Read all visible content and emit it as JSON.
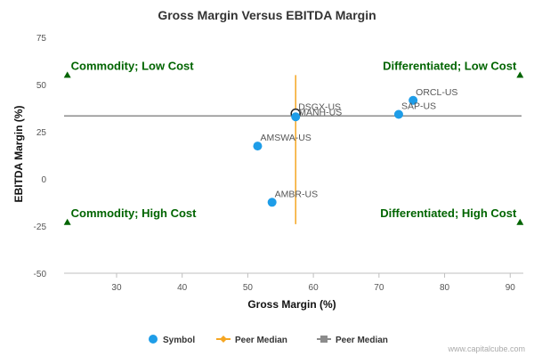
{
  "colors": {
    "symbol": "#1e9de8",
    "x_median_line": "#f5a623",
    "y_median_line": "#8c8c8c",
    "quadrant_text": "#006400",
    "quadrant_marker": "#006400",
    "axis": "#bfbfbf"
  },
  "chart_data": {
    "type": "scatter",
    "title": "Gross Margin Versus EBITDA Margin",
    "xlabel": "Gross Margin (%)",
    "ylabel": "EBITDA Margin (%)",
    "xlim": [
      22,
      92
    ],
    "ylim": [
      -50,
      75
    ],
    "x_ticks": [
      "30",
      "40",
      "50",
      "60",
      "70",
      "80",
      "90"
    ],
    "y_ticks": [
      "75",
      "50",
      "25",
      "0",
      "-25",
      "-50"
    ],
    "series": [
      {
        "name": "Symbol",
        "points": [
          {
            "label": "ORCL-US",
            "x": 75.2,
            "y": 41.6
          },
          {
            "label": "SAP-US",
            "x": 73.0,
            "y": 34.2
          },
          {
            "label": "DSGX-US",
            "x": 57.3,
            "y": 34.6
          },
          {
            "label": "MANH-US",
            "x": 57.3,
            "y": 32.9
          },
          {
            "label": "AMSWA-US",
            "x": 51.5,
            "y": 17.4
          },
          {
            "label": "AMBR-US",
            "x": 53.7,
            "y": -12.4
          }
        ]
      },
      {
        "name": "Peer Median",
        "kind": "vertical",
        "x": 57.3,
        "y_range": [
          -24,
          55
        ]
      },
      {
        "name": "Peer Median",
        "kind": "horizontal",
        "y": 33.4
      }
    ],
    "quadrants": [
      {
        "text": "Commodity; Low Cost",
        "x": 22.5,
        "y": 55
      },
      {
        "text": "Differentiated; Low Cost",
        "x": 91.5,
        "y": 55
      },
      {
        "text": "Commodity; High Cost",
        "x": 22.5,
        "y": -23
      },
      {
        "text": "Differentiated; High Cost",
        "x": 91.5,
        "y": -23
      }
    ],
    "legend": [
      "Symbol",
      "Peer Median",
      "Peer Median"
    ],
    "legend_position": "bottom",
    "grid": false
  },
  "credit": "www.capitalcube.com"
}
